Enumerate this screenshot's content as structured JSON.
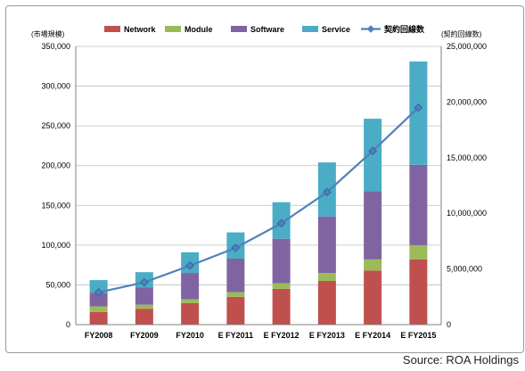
{
  "chart_data": {
    "type": "bar",
    "categories": [
      "FY2008",
      "FY2009",
      "FY2010",
      "E FY2011",
      "E FY2012",
      "E FY2013",
      "E FY2014",
      "E FY2015"
    ],
    "series": [
      {
        "name": "Network",
        "color": "#c0504d",
        "values": [
          16000,
          20000,
          27000,
          35000,
          45000,
          55000,
          68000,
          82000
        ]
      },
      {
        "name": "Module",
        "color": "#9bbb59",
        "values": [
          7000,
          5000,
          5000,
          6000,
          7000,
          10000,
          14000,
          18000
        ]
      },
      {
        "name": "Software",
        "color": "#8064a2",
        "values": [
          17000,
          22000,
          33000,
          42000,
          56000,
          71000,
          86000,
          101000
        ]
      },
      {
        "name": "Service",
        "color": "#4bacc6",
        "values": [
          16000,
          19000,
          26000,
          33000,
          46000,
          68000,
          91000,
          130000
        ]
      }
    ],
    "line_series": {
      "name": "契約回線数",
      "color": "#4f81bd",
      "axis": "right",
      "values": [
        2900000,
        3800000,
        5300000,
        6900000,
        9100000,
        11900000,
        15600000,
        19500000
      ]
    },
    "left_unit": "(市場規模)",
    "right_unit": "(契約回線数)",
    "left_ticks": [
      "0",
      "50,000",
      "100,000",
      "150,000",
      "200,000",
      "250,000",
      "300,000",
      "350,000"
    ],
    "right_ticks": [
      "0",
      "5,000,000",
      "10,000,000",
      "15,000,000",
      "20,000,000",
      "25,000,000"
    ],
    "ylim": [
      0,
      350000
    ],
    "y2lim": [
      0,
      25000000
    ],
    "grid": "horizontal",
    "legend_position": "top",
    "source": "Source: ROA Holdings"
  }
}
